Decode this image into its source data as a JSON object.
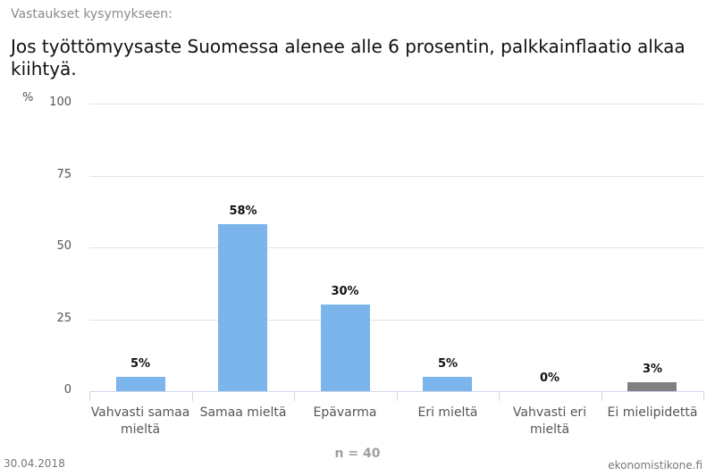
{
  "header": {
    "subtitle": "Vastaukset kysymykseen:",
    "title": "Jos työttömyysaste Suomessa alenee alle 6 prosentin, palkkainflaatio alkaa kiihtyä."
  },
  "footer": {
    "n_label": "n = 40",
    "date": "30.04.2018",
    "source": "ekonomistikone.fi"
  },
  "colors": {
    "bar_primary": "#7cb5ec",
    "bar_no_opinion": "#808080",
    "grid": "#e3e3e3",
    "axis": "#cdd9ea"
  },
  "chart_data": {
    "type": "bar",
    "title": "Jos työttömyysaste Suomessa alenee alle 6 prosentin, palkkainflaatio alkaa kiihtyä.",
    "subtitle": "Vastaukset kysymykseen:",
    "xlabel": "",
    "ylabel": "%",
    "ylim": [
      0,
      100
    ],
    "yticks": [
      "0",
      "25",
      "50",
      "75",
      "100"
    ],
    "grid": true,
    "legend": "none",
    "categories": [
      "Vahvasti samaa mieltä",
      "Samaa mieltä",
      "Epävarma",
      "Eri mieltä",
      "Vahvasti eri mieltä",
      "Ei mielipidettä"
    ],
    "values": [
      5,
      58,
      30,
      5,
      0,
      3
    ],
    "value_labels": [
      "5%",
      "58%",
      "30%",
      "5%",
      "0%",
      "3%"
    ],
    "bar_colors": [
      "#7cb5ec",
      "#7cb5ec",
      "#7cb5ec",
      "#7cb5ec",
      "#7cb5ec",
      "#808080"
    ],
    "annotations": [
      "n = 40"
    ]
  }
}
